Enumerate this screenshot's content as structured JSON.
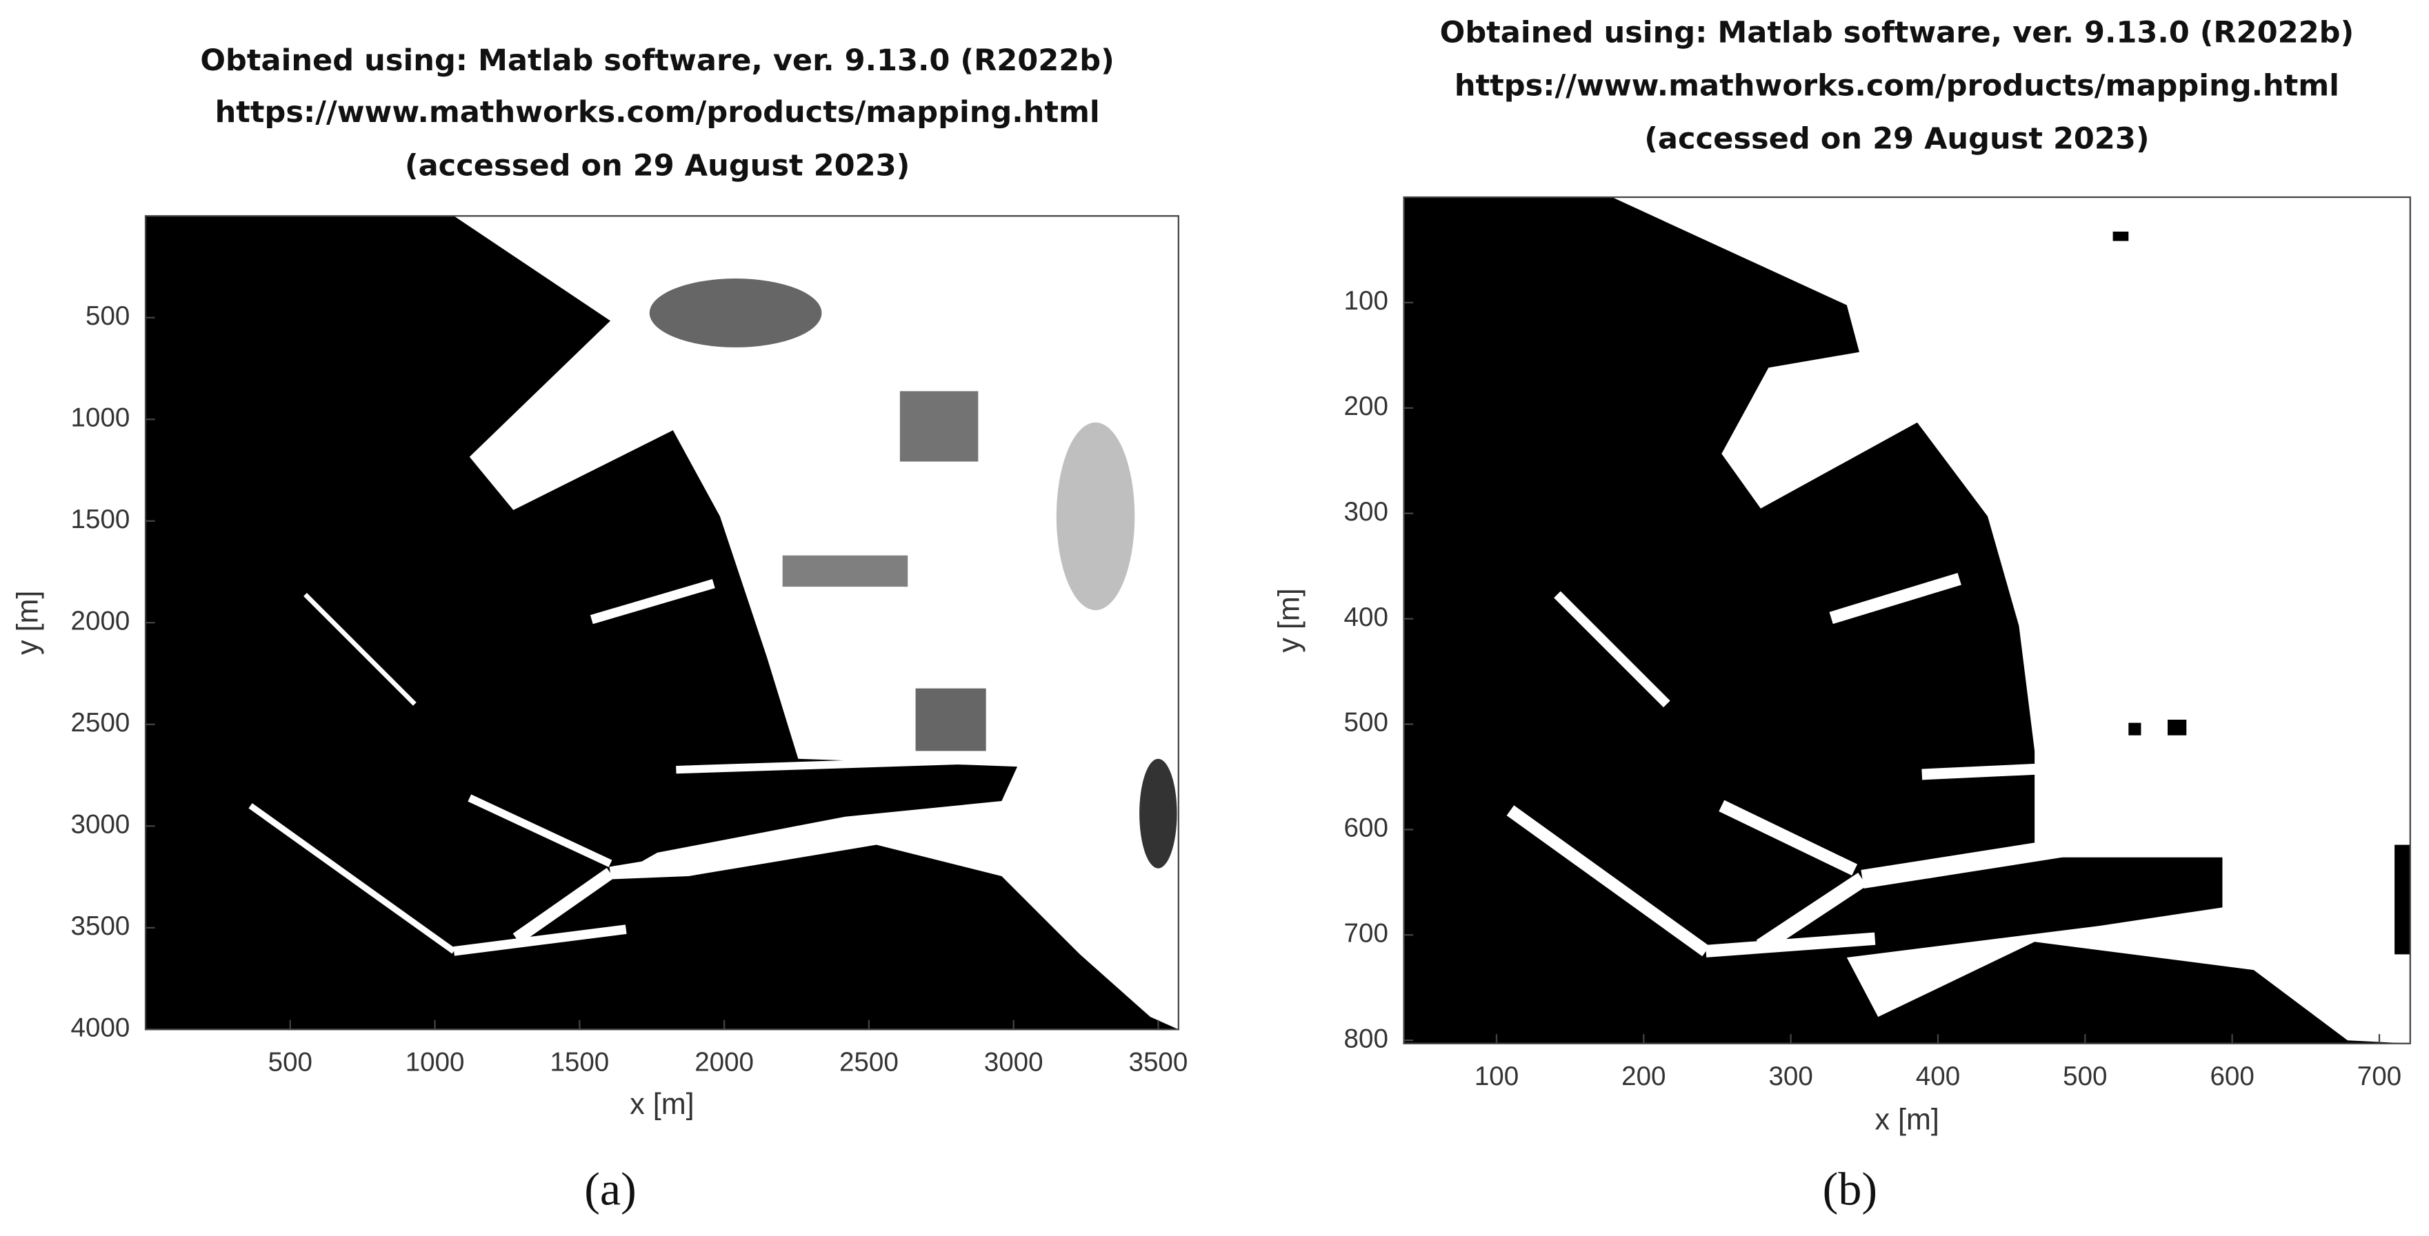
{
  "chart_data": [
    {
      "type": "image",
      "title": [
        "Obtained using: Matlab software, ver. 9.13.0 (R2022b)",
        "https://www.mathworks.com/products/mapping.html",
        "(accessed on 29 August 2023)"
      ],
      "xlabel": "x [m]",
      "ylabel": "y [m]",
      "xlim": [
        0,
        3570
      ],
      "ylim": [
        4000,
        0
      ],
      "xticks": [
        500,
        1000,
        1500,
        2000,
        2500,
        3000,
        3500
      ],
      "yticks": [
        500,
        1000,
        1500,
        2000,
        2500,
        3000,
        3500,
        4000
      ],
      "panel_label": "(a)"
    },
    {
      "type": "image",
      "title": [
        "Obtained using: Matlab software, ver. 9.13.0 (R2022b)",
        "https://www.mathworks.com/products/mapping.html",
        "(accessed on 29 August 2023)"
      ],
      "xlabel": "x [m]",
      "ylabel": "y [m]",
      "xlim": [
        37,
        721
      ],
      "ylim": [
        803,
        0
      ],
      "xticks": [
        100,
        200,
        300,
        400,
        500,
        600,
        700
      ],
      "yticks": [
        100,
        200,
        300,
        400,
        500,
        600,
        700,
        800
      ],
      "panel_label": "(b)"
    }
  ]
}
